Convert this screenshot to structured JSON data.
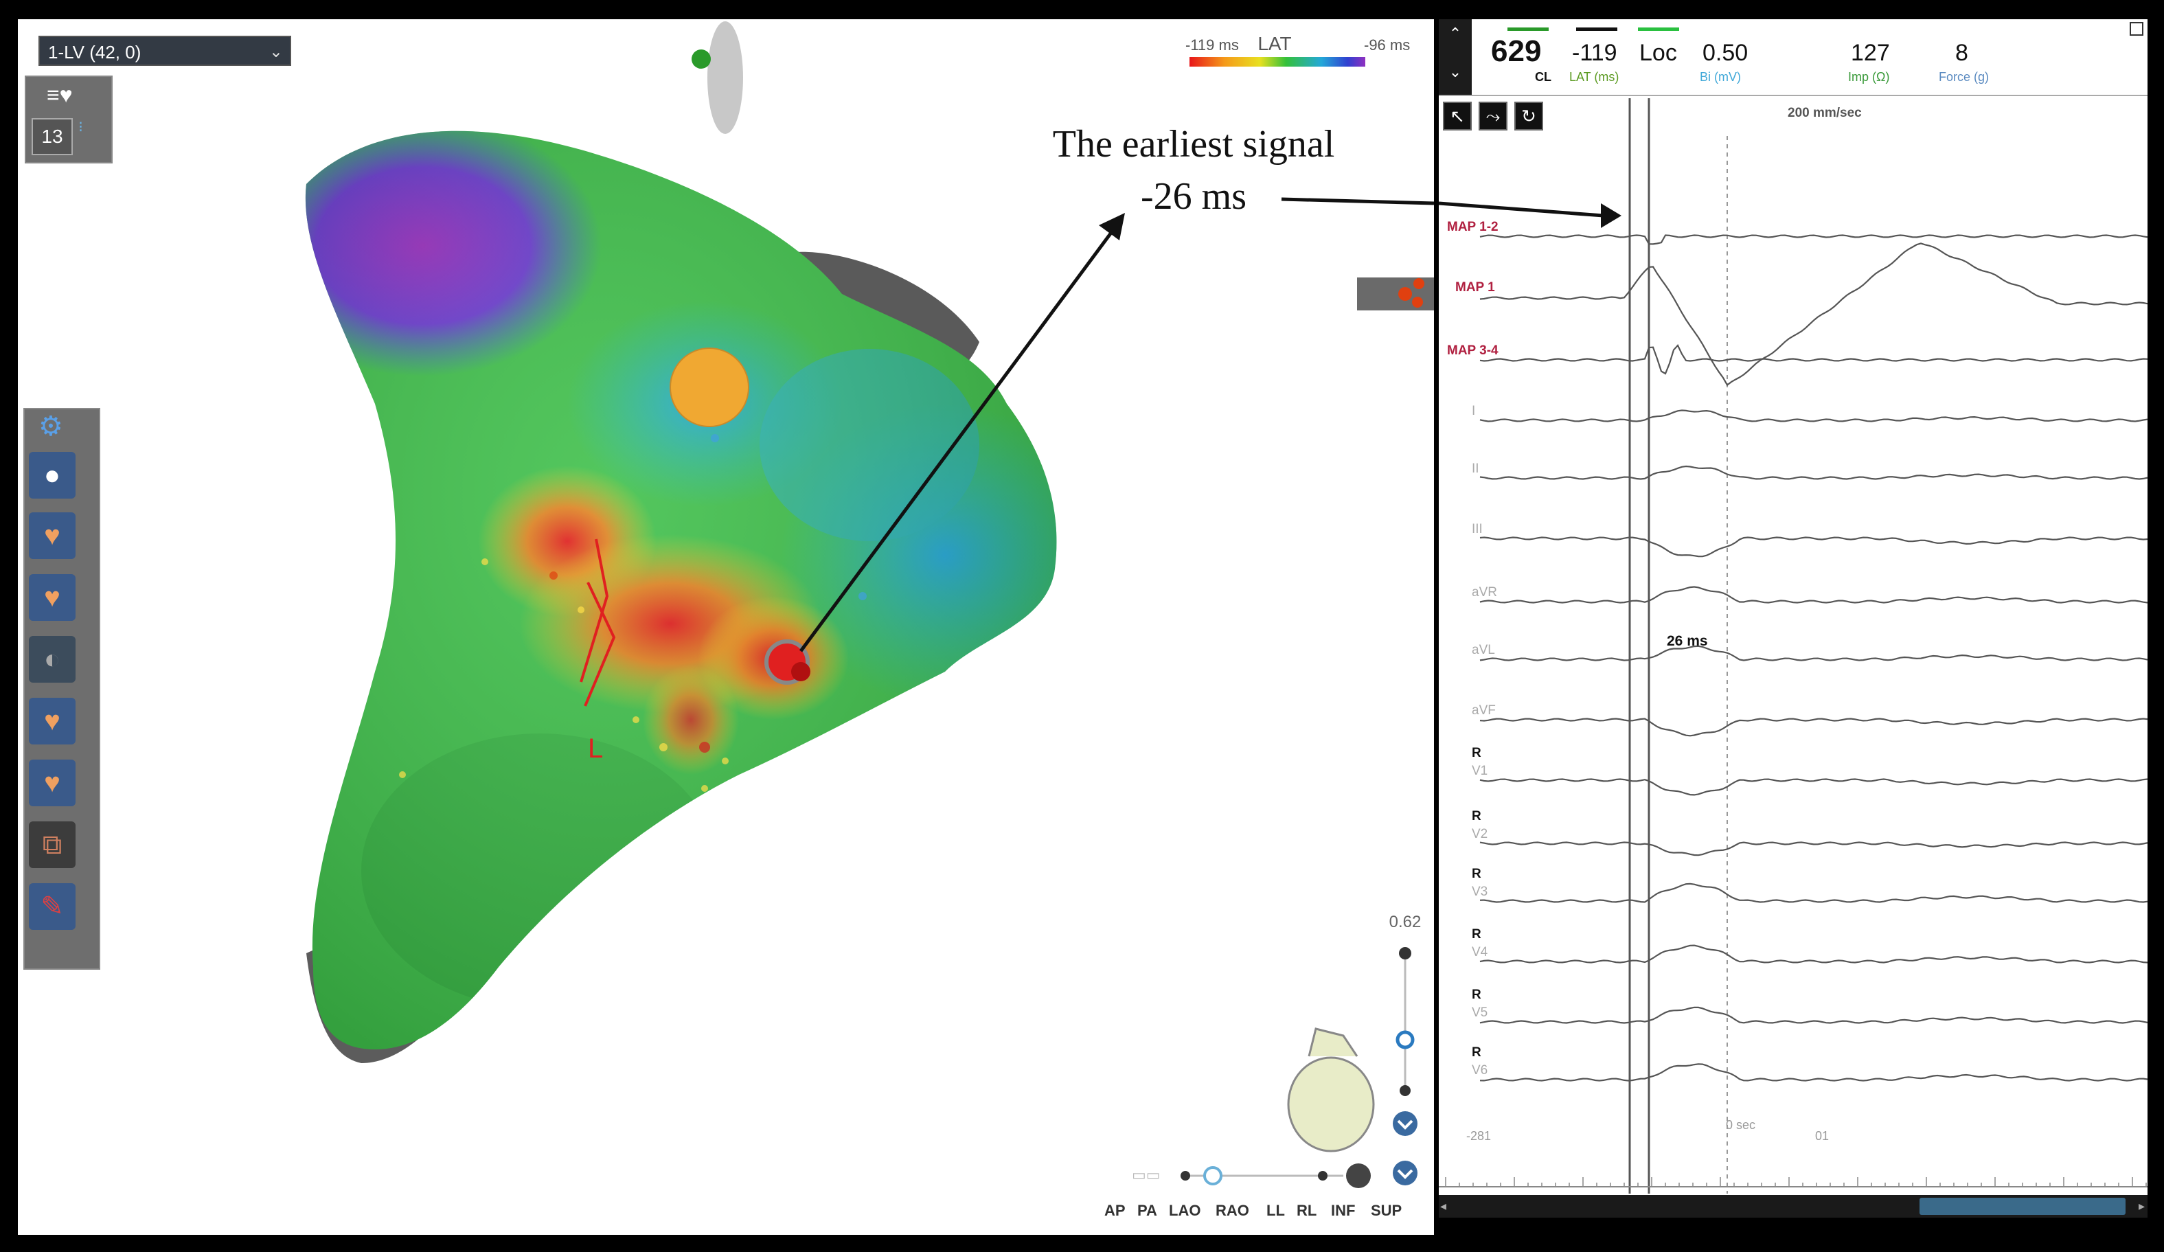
{
  "map": {
    "map_selector": "1-LV (42, 0)",
    "point_count": "13",
    "lat_legend": {
      "min_label": "-119 ms",
      "title": "LAT",
      "max_label": "-96 ms"
    },
    "annotation_title": "The earliest signal",
    "annotation_value": "-26 ms",
    "marker_letter": "L",
    "zoom_value": "0.62",
    "view_buttons": [
      "AP",
      "PA",
      "LAO",
      "RAO",
      "LL",
      "RL",
      "INF",
      "SUP"
    ]
  },
  "egm": {
    "header": {
      "cl_value": "629",
      "cl_label": "CL",
      "lat_value": "-119",
      "lat_label": "LAT (ms)",
      "loc_value": "Loc",
      "bi_value": "0.50",
      "bi_label": "Bi (mV)",
      "imp_value": "127",
      "imp_label": "Imp (Ω)",
      "force_value": "8",
      "force_label": "Force (g)"
    },
    "sweep_speed": "200 mm/sec",
    "measurement_label": "26 ms",
    "time_labels": {
      "left": "-281",
      "zero": "0 sec",
      "right": "01"
    },
    "channels": [
      "MAP 1-2",
      "MAP 1",
      "MAP 3-4",
      "I",
      "II",
      "III",
      "aVR",
      "aVL",
      "aVF",
      "V1",
      "V2",
      "V3",
      "V4",
      "V5",
      "V6"
    ],
    "ref_marker": "R"
  }
}
